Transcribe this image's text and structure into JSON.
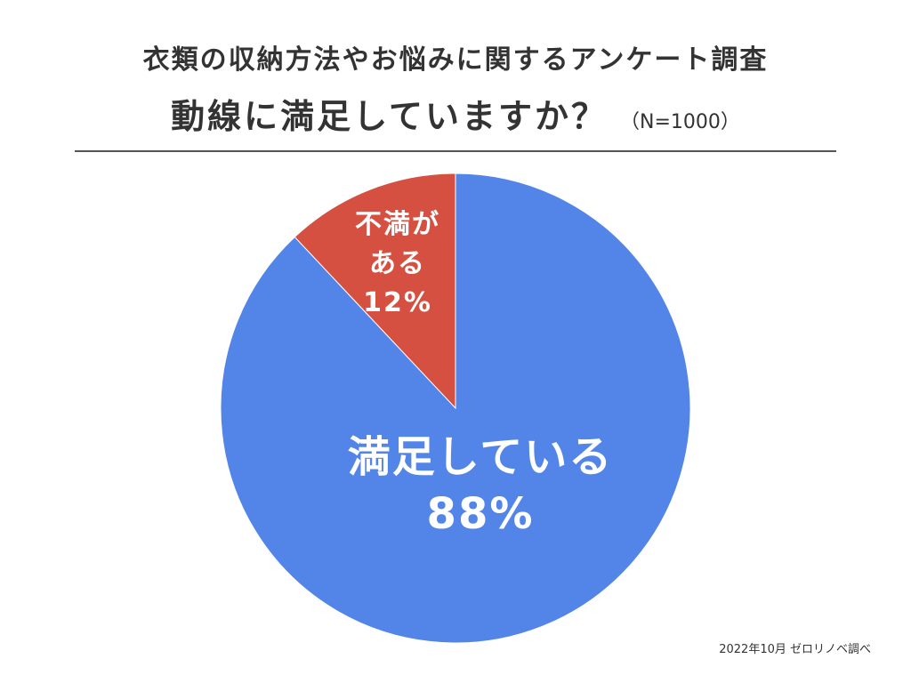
{
  "header": {
    "title_line1": "衣類の収納方法やお悩みに関するアンケート調査",
    "title_line2": "動線に満足していますか？",
    "sample_size": "（N=1000）"
  },
  "footer": {
    "source": "2022年10月 ゼロリノベ調べ"
  },
  "chart_data": {
    "type": "pie",
    "title": "動線に満足していますか？",
    "start": "12 o'clock",
    "direction": "counterclockwise",
    "slices": [
      {
        "label": "不満がある",
        "label_lines": [
          "不満が",
          "ある"
        ],
        "percent_label": "12%",
        "value": 12,
        "color": "#d55041"
      },
      {
        "label": "満足している",
        "label_lines": [
          "満足している"
        ],
        "percent_label": "88%",
        "value": 88,
        "color": "#5385e9"
      }
    ]
  }
}
